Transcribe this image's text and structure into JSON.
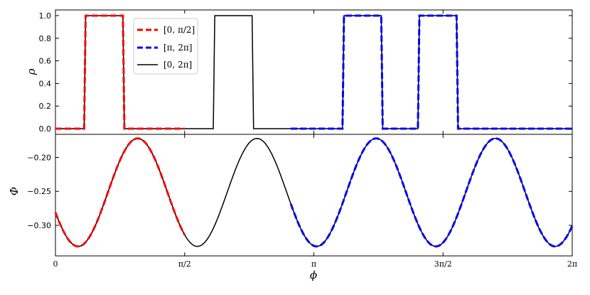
{
  "chart_data": [
    {
      "type": "line",
      "panel": "top",
      "xlabel": "",
      "ylabel": "ρ",
      "xlim_rad": [
        0,
        6.283185
      ],
      "ylim": [
        -0.05,
        1.05
      ],
      "yticks": [
        0.0,
        0.2,
        0.4,
        0.6,
        0.8,
        1.0
      ],
      "ytick_labels": [
        "0.0",
        "0.2",
        "0.4",
        "0.6",
        "0.8",
        "1.0"
      ],
      "legend": {
        "placement": "upper-left (inset)",
        "entries": [
          {
            "label": "[0, π/2]",
            "color": "#ff0000",
            "style": "dashed"
          },
          {
            "label": "[π, 2π]",
            "color": "#0000ff",
            "style": "dashed"
          },
          {
            "label": "[0, 2π]",
            "color": "#000000",
            "style": "solid"
          }
        ]
      },
      "series": [
        {
          "name": "[0, 2π]",
          "color": "#000000",
          "style": "solid",
          "x": [
            0,
            0.349,
            0.367,
            0.82,
            0.838,
            1.919,
            1.937,
            2.391,
            2.409,
            3.49,
            3.508,
            3.961,
            3.979,
            4.407,
            4.425,
            4.877,
            4.895,
            6.283
          ],
          "y": [
            0,
            0,
            1,
            1,
            0,
            0,
            1,
            1,
            0,
            0,
            1,
            1,
            0,
            0,
            1,
            1,
            0,
            0
          ]
        },
        {
          "name": "[0, π/2]",
          "color": "#ff0000",
          "style": "dashed",
          "x": [
            0,
            0.349,
            0.367,
            0.82,
            0.838,
            1.571
          ],
          "y": [
            0,
            0,
            1,
            1,
            0,
            0
          ]
        },
        {
          "name": "[π, 2π]",
          "color": "#0000ff",
          "style": "dashed",
          "x": [
            2.862,
            3.49,
            3.508,
            3.961,
            3.979,
            4.407,
            4.425,
            4.877,
            4.895,
            6.283
          ],
          "y": [
            0,
            0,
            1,
            1,
            0,
            0,
            1,
            1,
            0,
            0
          ]
        }
      ]
    },
    {
      "type": "line",
      "panel": "bottom",
      "xlabel": "ϕ",
      "ylabel": "Φ",
      "xlim_rad": [
        0,
        6.283185
      ],
      "ylim": [
        -0.345,
        -0.166
      ],
      "yticks": [
        -0.3,
        -0.25,
        -0.2
      ],
      "ytick_labels": [
        "−0.30",
        "−0.25",
        "−0.20"
      ],
      "xticks_rad": [
        0,
        1.5708,
        3.1416,
        4.7124,
        6.2832
      ],
      "xtick_labels": [
        "0",
        "π/2",
        "π",
        "3π/2",
        "2π"
      ],
      "series_model": {
        "form": "mean - amp*(1 - cos(2π(ϕ - peak)/period))/2",
        "mean": -0.172,
        "amp": 0.159,
        "peak_rad": 1.0,
        "period_rad": 1.45
      },
      "series": [
        {
          "name": "[0, 2π]",
          "color": "#000000",
          "style": "solid",
          "x_range": [
            0,
            6.283
          ],
          "x": [
            0,
            0.275,
            0.6,
            1.0,
            1.4,
            1.725,
            2.1,
            2.45,
            2.8,
            3.175,
            3.55,
            3.9,
            4.25,
            4.625,
            5.0,
            5.35,
            5.7,
            6.075,
            6.283
          ],
          "y": [
            -0.178,
            -0.25,
            -0.33,
            -0.172,
            -0.33,
            -0.25,
            -0.172,
            -0.33,
            -0.25,
            -0.172,
            -0.33,
            -0.25,
            -0.172,
            -0.33,
            -0.25,
            -0.172,
            -0.33,
            -0.25,
            -0.178
          ]
        },
        {
          "name": "[0, π/2]",
          "color": "#ff0000",
          "style": "dashed",
          "x_range": [
            0,
            1.571
          ]
        },
        {
          "name": "[π, 2π]",
          "color": "#0000ff",
          "style": "dashed",
          "x_range": [
            2.862,
            6.283
          ]
        }
      ]
    }
  ]
}
